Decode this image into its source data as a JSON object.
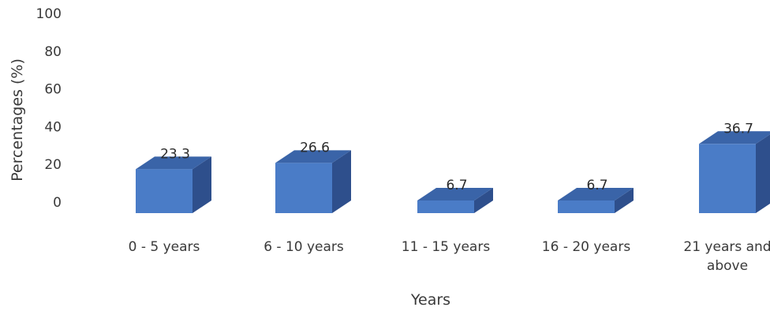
{
  "chart_data": {
    "type": "bar",
    "variant": "3d-column",
    "categories": [
      [
        "0 - 5 years"
      ],
      [
        "6 - 10 years"
      ],
      [
        "11 - 15 years"
      ],
      [
        "16 - 20 years"
      ],
      [
        "21 years and",
        "above"
      ]
    ],
    "values": [
      23.3,
      26.6,
      6.7,
      6.7,
      36.7
    ],
    "data_labels": [
      "23.3",
      "26.6",
      "6.7",
      "6.7",
      "36.7"
    ],
    "title": "",
    "xlabel": "Years",
    "ylabel": "Percentages (%)",
    "ylim": [
      0,
      100
    ],
    "yticks": [
      "0",
      "20",
      "40",
      "60",
      "80",
      "100"
    ],
    "grid": false,
    "legend": "none",
    "colors": {
      "front": "#4a7cc7",
      "side": "#2e4f8c",
      "top": "#3a64a8",
      "text": "#3a3a3a"
    }
  }
}
